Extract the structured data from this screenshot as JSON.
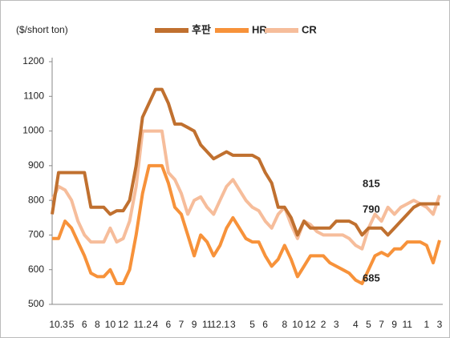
{
  "chart_data": {
    "type": "line",
    "y_label": "($/short ton)",
    "categories": [
      null,
      "10.3",
      null,
      "5",
      null,
      "6",
      null,
      "8",
      null,
      "10",
      null,
      "12",
      null,
      null,
      "11.2",
      null,
      "4",
      null,
      "6",
      null,
      "7",
      null,
      "9",
      null,
      "11",
      null,
      "12.1",
      null,
      "3",
      null,
      null,
      "5",
      null,
      "6",
      null,
      null,
      "8",
      null,
      "10",
      null,
      "12",
      null,
      "2",
      null,
      "3",
      null,
      null,
      "4",
      null,
      "5",
      null,
      "7",
      null,
      "9",
      null,
      "11",
      null,
      null,
      "1",
      null,
      "3"
    ],
    "series": [
      {
        "name": "후판",
        "color": "#c0702f",
        "values": [
          760,
          880,
          880,
          880,
          880,
          880,
          780,
          780,
          780,
          760,
          770,
          770,
          800,
          900,
          1040,
          1080,
          1120,
          1120,
          1080,
          1020,
          1020,
          1010,
          1000,
          960,
          940,
          920,
          930,
          940,
          930,
          930,
          930,
          930,
          920,
          880,
          850,
          780,
          780,
          750,
          700,
          740,
          720,
          720,
          720,
          720,
          740,
          740,
          740,
          730,
          700,
          720,
          720,
          720,
          700,
          720,
          740,
          760,
          780,
          790,
          790,
          790,
          790
        ]
      },
      {
        "name": "HR",
        "color": "#f7923a",
        "values": [
          690,
          690,
          740,
          720,
          680,
          640,
          590,
          580,
          580,
          600,
          560,
          560,
          600,
          700,
          820,
          900,
          900,
          900,
          850,
          780,
          760,
          700,
          640,
          700,
          680,
          640,
          670,
          720,
          750,
          720,
          690,
          680,
          680,
          640,
          610,
          630,
          670,
          630,
          580,
          610,
          640,
          640,
          640,
          620,
          610,
          600,
          590,
          570,
          560,
          600,
          640,
          650,
          640,
          660,
          660,
          680,
          680,
          680,
          670,
          620,
          685
        ]
      },
      {
        "name": "CR",
        "color": "#f6bd9b",
        "values": [
          800,
          840,
          830,
          800,
          740,
          700,
          680,
          680,
          680,
          720,
          680,
          690,
          740,
          840,
          1000,
          1000,
          1000,
          1000,
          880,
          860,
          820,
          760,
          800,
          810,
          780,
          760,
          800,
          840,
          860,
          830,
          800,
          780,
          770,
          740,
          720,
          760,
          780,
          730,
          690,
          740,
          730,
          710,
          700,
          700,
          700,
          700,
          690,
          670,
          660,
          720,
          760,
          740,
          780,
          760,
          780,
          790,
          800,
          790,
          780,
          760,
          815
        ]
      }
    ],
    "ylim": [
      500,
      1200
    ],
    "yticks": [
      500,
      600,
      700,
      800,
      900,
      1000,
      1100,
      1200
    ],
    "legend": "top"
  }
}
